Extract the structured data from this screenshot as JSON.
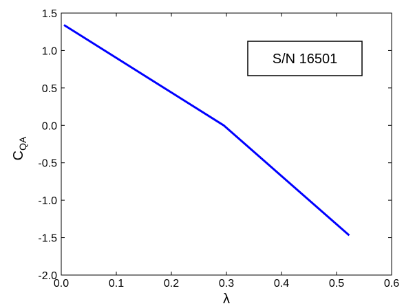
{
  "chart_data": {
    "type": "line",
    "xlabel": "λ",
    "ylabel_main": "C",
    "ylabel_sub": "QA",
    "xlim": [
      0.0,
      0.6
    ],
    "ylim": [
      -2.0,
      1.5
    ],
    "xticks": [
      0.0,
      0.1,
      0.2,
      0.3,
      0.4,
      0.5,
      0.6
    ],
    "yticks": [
      -2.0,
      -1.5,
      -1.0,
      -0.5,
      0.0,
      0.5,
      1.0,
      1.5
    ],
    "xtick_labels": [
      "0.0",
      "0.1",
      "0.2",
      "0.3",
      "0.4",
      "0.5",
      "0.6"
    ],
    "ytick_labels": [
      "-2.0",
      "-1.5",
      "-1.0",
      "-0.5",
      "0.0",
      "0.5",
      "1.0",
      "1.5"
    ],
    "grid": false,
    "series": [
      {
        "color": "#0000ff",
        "x": [
          0.005,
          0.295,
          0.523
        ],
        "y": [
          1.34,
          0.0,
          -1.47
        ]
      }
    ],
    "annotation": "S/N 16501"
  }
}
